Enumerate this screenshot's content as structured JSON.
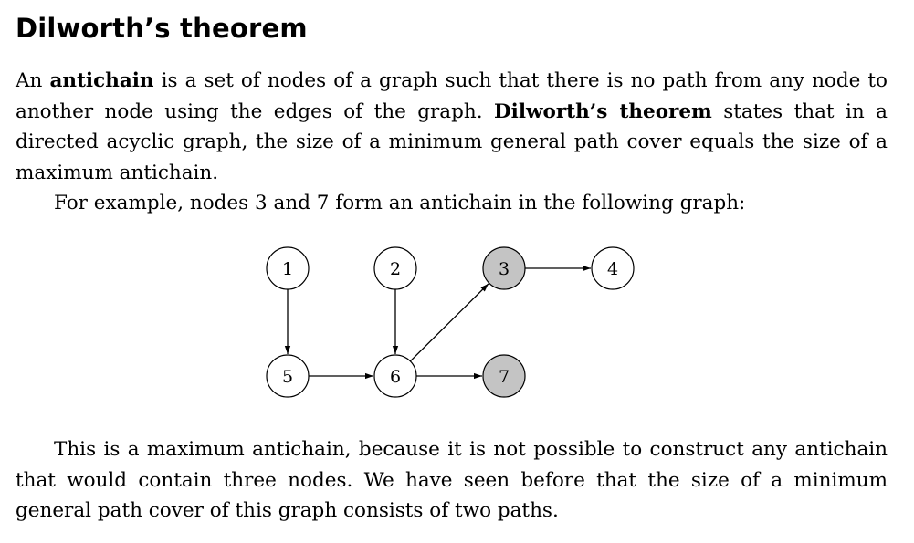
{
  "section": {
    "title": "Dilworth’s theorem"
  },
  "paragraph1": {
    "t1": "An ",
    "b1": "antichain",
    "t2": " is a set of nodes of a graph such that there is no path from any node to another node using the edges of the graph. ",
    "b2": "Dilworth’s theorem",
    "t3": " states that in a directed acyclic graph, the size of a minimum general path cover equals the size of a maximum antichain."
  },
  "paragraph2": {
    "text": "For example, nodes 3 and 7 form an antichain in the following graph:"
  },
  "graph": {
    "nodes": [
      {
        "id": "1",
        "label": "1",
        "highlighted": false
      },
      {
        "id": "2",
        "label": "2",
        "highlighted": false
      },
      {
        "id": "3",
        "label": "3",
        "highlighted": true
      },
      {
        "id": "4",
        "label": "4",
        "highlighted": false
      },
      {
        "id": "5",
        "label": "5",
        "highlighted": false
      },
      {
        "id": "6",
        "label": "6",
        "highlighted": false
      },
      {
        "id": "7",
        "label": "7",
        "highlighted": true
      }
    ],
    "edges": [
      {
        "from": "1",
        "to": "5"
      },
      {
        "from": "2",
        "to": "6"
      },
      {
        "from": "5",
        "to": "6"
      },
      {
        "from": "6",
        "to": "7"
      },
      {
        "from": "6",
        "to": "3"
      },
      {
        "from": "3",
        "to": "4"
      }
    ],
    "highlight_color": "#c4c4c4"
  },
  "paragraph3": {
    "text": "This is a maximum antichain, because it is not possible to construct any antichain that would contain three nodes. We have seen before that the size of a minimum general path cover of this graph consists of two paths."
  }
}
